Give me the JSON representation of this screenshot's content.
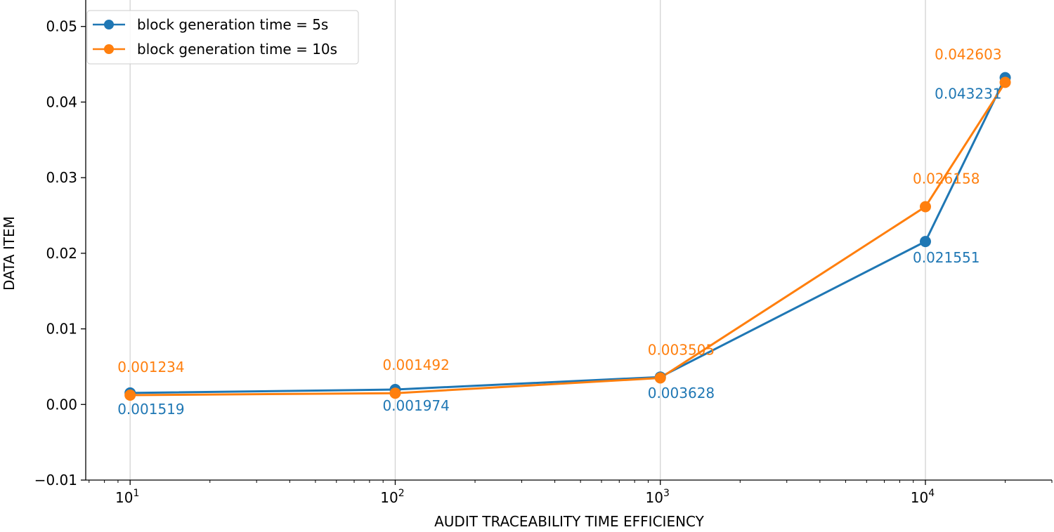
{
  "chart_data": {
    "type": "line",
    "title": "",
    "xlabel": "AUDIT TRACEABILITY TIME EFFICIENCY",
    "ylabel": "DATA ITEM",
    "xscale": "log",
    "xlim": [
      6.8,
      30000
    ],
    "ylim": [
      -0.01,
      0.0535
    ],
    "x": [
      10,
      100,
      1000,
      10000,
      20000
    ],
    "xticks": [
      10,
      100,
      1000,
      10000
    ],
    "xtick_labels": [
      {
        "base": "10",
        "exp": "1"
      },
      {
        "base": "10",
        "exp": "2"
      },
      {
        "base": "10",
        "exp": "3"
      },
      {
        "base": "10",
        "exp": "4"
      }
    ],
    "yticks": [
      -0.01,
      0.0,
      0.01,
      0.02,
      0.03,
      0.04,
      0.05
    ],
    "ytick_labels": [
      "−0.01",
      "0.00",
      "0.01",
      "0.02",
      "0.03",
      "0.04",
      "0.05"
    ],
    "grid": "vertical at major x ticks",
    "legend_position": "top-left",
    "series": [
      {
        "name": "block generation time = 5s",
        "color": "#1f77b4",
        "values": [
          0.001519,
          0.001974,
          0.003628,
          0.021551,
          0.043231
        ],
        "labels": [
          "0.001519",
          "0.001974",
          "0.003628",
          "0.021551",
          "0.043231"
        ],
        "label_side": "below"
      },
      {
        "name": "block generation time = 10s",
        "color": "#ff7f0e",
        "values": [
          0.001234,
          0.001492,
          0.003505,
          0.026158,
          0.042603
        ],
        "labels": [
          "0.001234",
          "0.001492",
          "0.003505",
          "0.026158",
          "0.042603"
        ],
        "label_side": "above"
      }
    ]
  }
}
